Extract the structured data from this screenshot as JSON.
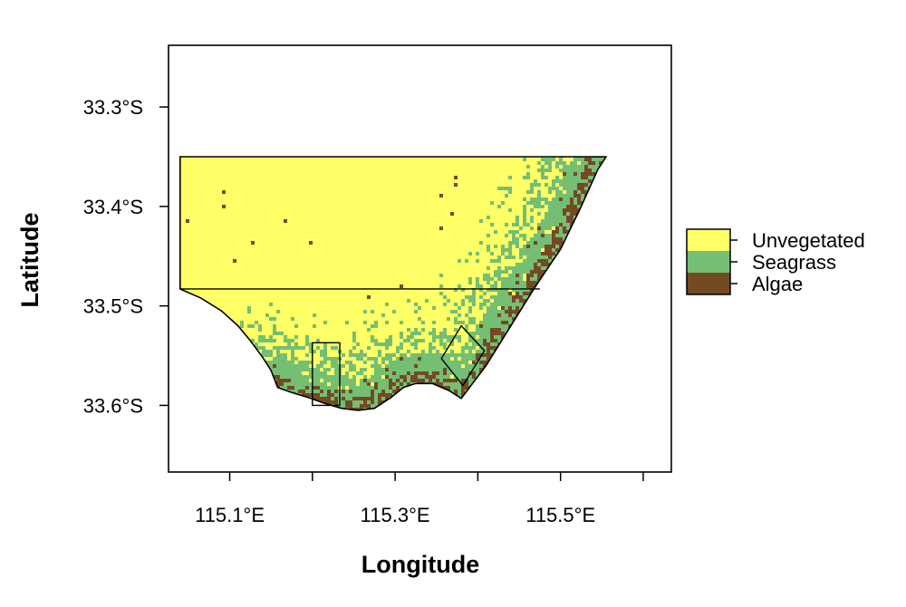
{
  "chart_data": {
    "type": "heatmap",
    "title": "",
    "xlabel": "Longitude",
    "ylabel": "Latitude",
    "xlim": [
      115.026,
      115.634
    ],
    "ylim": [
      -33.667,
      -33.238
    ],
    "x_ticks": [
      {
        "value": 115.1,
        "label": "115.1°E"
      },
      {
        "value": 115.2,
        "label": ""
      },
      {
        "value": 115.3,
        "label": "115.3°E"
      },
      {
        "value": 115.4,
        "label": ""
      },
      {
        "value": 115.5,
        "label": "115.5°E"
      },
      {
        "value": 115.6,
        "label": ""
      }
    ],
    "y_ticks": [
      {
        "value": -33.3,
        "label": "33.3°S"
      },
      {
        "value": -33.4,
        "label": "33.4°S"
      },
      {
        "value": -33.5,
        "label": "33.5°S"
      },
      {
        "value": -33.6,
        "label": "33.6°S"
      }
    ],
    "legend": {
      "placement": "right",
      "classes": [
        {
          "name": "Unvegetated",
          "color": "#ffff66"
        },
        {
          "name": "Seagrass",
          "color": "#74bf74"
        },
        {
          "name": "Algae",
          "color": "#734a24"
        }
      ]
    },
    "grid": false,
    "study_area": {
      "outline": [
        [
          115.04,
          -33.35
        ],
        [
          115.555,
          -33.35
        ],
        [
          115.545,
          -33.363
        ],
        [
          115.525,
          -33.4
        ],
        [
          115.5,
          -33.443
        ],
        [
          115.47,
          -33.48
        ],
        [
          115.44,
          -33.52
        ],
        [
          115.41,
          -33.56
        ],
        [
          115.38,
          -33.593
        ],
        [
          115.365,
          -33.585
        ],
        [
          115.345,
          -33.578
        ],
        [
          115.325,
          -33.578
        ],
        [
          115.31,
          -33.582
        ],
        [
          115.295,
          -33.592
        ],
        [
          115.275,
          -33.603
        ],
        [
          115.255,
          -33.605
        ],
        [
          115.235,
          -33.603
        ],
        [
          115.215,
          -33.598
        ],
        [
          115.195,
          -33.592
        ],
        [
          115.175,
          -33.587
        ],
        [
          115.158,
          -33.582
        ],
        [
          115.15,
          -33.565
        ],
        [
          115.14,
          -33.552
        ],
        [
          115.125,
          -33.535
        ],
        [
          115.11,
          -33.52
        ],
        [
          115.09,
          -33.505
        ],
        [
          115.065,
          -33.492
        ],
        [
          115.04,
          -33.483
        ]
      ],
      "divider_lat": -33.483,
      "boxes": [
        [
          [
            115.2,
            -33.537
          ],
          [
            115.233,
            -33.537
          ],
          [
            115.233,
            -33.6
          ],
          [
            115.2,
            -33.6
          ]
        ],
        [
          [
            115.38,
            -33.52
          ],
          [
            115.408,
            -33.545
          ],
          [
            115.382,
            -33.58
          ],
          [
            115.356,
            -33.553
          ]
        ]
      ]
    }
  }
}
